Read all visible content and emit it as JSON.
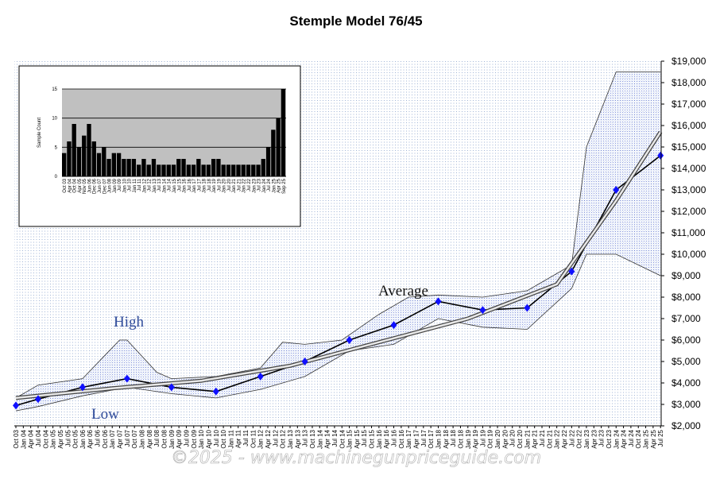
{
  "chart_data": {
    "type": "line",
    "title": "Stemple Model 76/45",
    "y_axis": {
      "min": 2000,
      "max": 19000,
      "step": 1000,
      "tick_labels": [
        "$2,000",
        "$3,000",
        "$4,000",
        "$5,000",
        "$6,000",
        "$7,000",
        "$8,000",
        "$9,000",
        "$10,000",
        "$11,000",
        "$12,000",
        "$13,000",
        "$14,000",
        "$15,000",
        "$16,000",
        "$17,000",
        "$18,000",
        "$19,000"
      ]
    },
    "x_axis": {
      "tick_labels": [
        "Oct 03",
        "Jan 04",
        "Apr 04",
        "Jul 04",
        "Oct 04",
        "Jan 05",
        "Apr 05",
        "Jul 05",
        "Oct 05",
        "Jan 06",
        "Apr 06",
        "Jul 06",
        "Oct 06",
        "Jan 07",
        "Apr 07",
        "Jul 07",
        "Oct 07",
        "Jan 08",
        "Apr 08",
        "Jul 08",
        "Oct 08",
        "Jan 09",
        "Apr 09",
        "Jul 09",
        "Oct 09",
        "Jan 10",
        "Apr 10",
        "Jul 10",
        "Oct 10",
        "Jan 11",
        "Apr 11",
        "Jul 11",
        "Oct 11",
        "Jan 12",
        "Apr 12",
        "Jul 12",
        "Oct 12",
        "Jan 13",
        "Apr 13",
        "Jul 13",
        "Oct 13",
        "Jan 14",
        "Apr 14",
        "Jul 14",
        "Oct 14",
        "Jan 15",
        "Apr 15",
        "Jul 15",
        "Oct 15",
        "Jan 16",
        "Apr 16",
        "Jul 16",
        "Oct 16",
        "Jan 17",
        "Apr 17",
        "Jul 17",
        "Oct 17",
        "Jan 18",
        "Apr 18",
        "Jul 18",
        "Oct 18",
        "Jan 19",
        "Apr 19",
        "Jul 19",
        "Oct 19",
        "Jan 20",
        "Apr 20",
        "Jul 20",
        "Oct 20",
        "Jan 21",
        "Apr 21",
        "Jul 21",
        "Oct 21",
        "Jan 22",
        "Apr 22",
        "Jul 22",
        "Oct 22",
        "Jan 23",
        "Apr 23",
        "Jul 23",
        "Oct 23",
        "Jan 24",
        "Apr 24",
        "Jul 24",
        "Oct 24",
        "Jan 25",
        "Apr 25",
        "Jul 25"
      ],
      "label_interval": 1
    },
    "grid": true,
    "annotations": [
      "High",
      "Average",
      "Low"
    ],
    "watermark": "©2025 - www.machinegunpriceguide.com",
    "series": [
      {
        "name": "Average",
        "x": [
          "Oct 03",
          "Jul 04",
          "Jan 06",
          "Jul 07",
          "Jan 09",
          "Jul 10",
          "Jan 12",
          "Jul 13",
          "Jan 15",
          "Jul 16",
          "Jan 18",
          "Jul 19",
          "Jan 21",
          "Jul 22",
          "Jan 24",
          "Jul 25"
        ],
        "values": [
          2950,
          3250,
          3800,
          4200,
          3800,
          3600,
          4300,
          5000,
          6000,
          6700,
          7800,
          7400,
          7500,
          9200,
          13000,
          14600
        ]
      },
      {
        "name": "High",
        "x": [
          "Oct 03",
          "Jul 04",
          "Jan 06",
          "Apr 07",
          "Jul 07",
          "Jul 08",
          "Jan 09",
          "Jul 10",
          "Jan 12",
          "Oct 12",
          "Jul 13",
          "Oct 14",
          "Jan 16",
          "Jan 17",
          "Jan 18",
          "Jul 19",
          "Jan 21",
          "Jul 22",
          "Jan 23",
          "Jan 24",
          "Jul 25"
        ],
        "values": [
          3300,
          3900,
          4200,
          6000,
          6000,
          4500,
          4200,
          4300,
          4700,
          5900,
          5800,
          6000,
          7200,
          8000,
          8100,
          8000,
          8300,
          9500,
          15000,
          18500,
          18500
        ]
      },
      {
        "name": "Low",
        "x": [
          "Oct 03",
          "Jul 04",
          "Jan 06",
          "Jul 07",
          "Jan 09",
          "Jul 10",
          "Jan 12",
          "Jul 13",
          "Jan 15",
          "Jul 16",
          "Jan 18",
          "Jul 19",
          "Jan 21",
          "Jul 22",
          "Jan 23",
          "Jan 24",
          "Jul 25"
        ],
        "values": [
          2700,
          2900,
          3400,
          3800,
          3500,
          3300,
          3700,
          4300,
          5500,
          5800,
          7000,
          6600,
          6500,
          8400,
          10000,
          10000,
          9000
        ]
      },
      {
        "name": "Trend",
        "x": [
          "Oct 03",
          "Jan 07",
          "Jan 10",
          "Jan 13",
          "Jan 16",
          "Jan 19",
          "Jan 22",
          "Jan 24",
          "Jul 25"
        ],
        "values": [
          3300,
          3750,
          4100,
          4800,
          5900,
          7000,
          8600,
          12500,
          15700
        ]
      }
    ],
    "inset": {
      "type": "bar",
      "ylabel": "Sample Count",
      "ylim": [
        0,
        15
      ],
      "y_ticks": [
        "0",
        "5",
        "10",
        "15"
      ],
      "x_tick_labels": [
        "Oct 03",
        "Apr 04",
        "Oct 04",
        "Apr 05",
        "Nov 05",
        "Jun 06",
        "Dec 06",
        "Jun 07",
        "Dec 07",
        "Jun 08",
        "Jan 09",
        "Jul 09",
        "Jan 10",
        "Jul 10",
        "Jan 11",
        "Jul 11",
        "Jan 12",
        "Jul 12",
        "Jan 13",
        "Jul 13",
        "Jan 14",
        "Jul 14",
        "Jan 15",
        "Jul 15",
        "Jan 16",
        "Jul 16",
        "Jan 17",
        "Jul 17",
        "Jan 18",
        "Jul 18",
        "Jan 19",
        "Jul 19",
        "Jan 20",
        "Jul 20",
        "Jan 21",
        "Jul 21",
        "Jan 22",
        "Jul 22",
        "Jan 23",
        "Jul 23",
        "Jan 24",
        "Jul 24",
        "Jan 25",
        "Apr 25",
        "Sep 25"
      ],
      "levels": [
        4,
        6,
        9,
        5,
        7,
        9,
        6,
        4,
        5,
        3,
        4,
        4,
        3,
        3,
        3,
        2,
        3,
        2,
        3,
        2,
        2,
        2,
        2,
        3,
        3,
        2,
        2,
        3,
        2,
        2,
        3,
        3,
        2,
        2,
        2,
        2,
        2,
        2,
        2,
        2,
        3,
        5,
        8,
        10,
        16
      ]
    }
  }
}
